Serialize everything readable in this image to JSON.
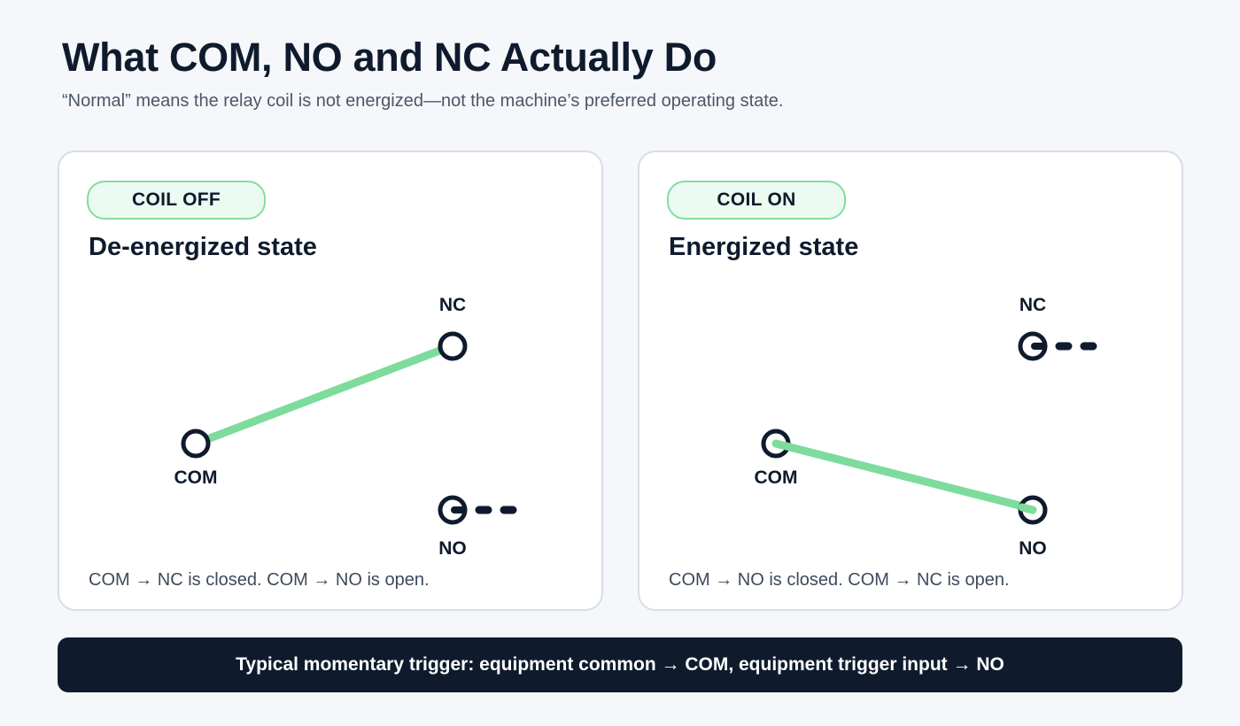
{
  "header": {
    "title": "What COM, NO and NC Actually Do",
    "subtitle": "“Normal” means the relay coil is not energized—not the machine’s preferred operating state."
  },
  "cards": [
    {
      "badge": "COIL OFF",
      "heading": "De-energized state",
      "labels": {
        "nc": "NC",
        "com": "COM",
        "no": "NO"
      },
      "caption": "COM → NC is closed. COM → NO is open.",
      "closed_contact": "NC"
    },
    {
      "badge": "COIL ON",
      "heading": "Energized state",
      "labels": {
        "nc": "NC",
        "com": "COM",
        "no": "NO"
      },
      "caption": "COM → NO is closed. COM → NC is open.",
      "closed_contact": "NO"
    }
  ],
  "footer": {
    "text": "Typical momentary trigger: equipment common → COM, equipment trigger input → NO"
  },
  "colors": {
    "closed_path": "#7ddc9c",
    "terminal": "#0f1b2d",
    "badge_border": "#86dba0",
    "badge_fill": "#ecfbf1",
    "footer_bg": "#0f1b2d"
  }
}
